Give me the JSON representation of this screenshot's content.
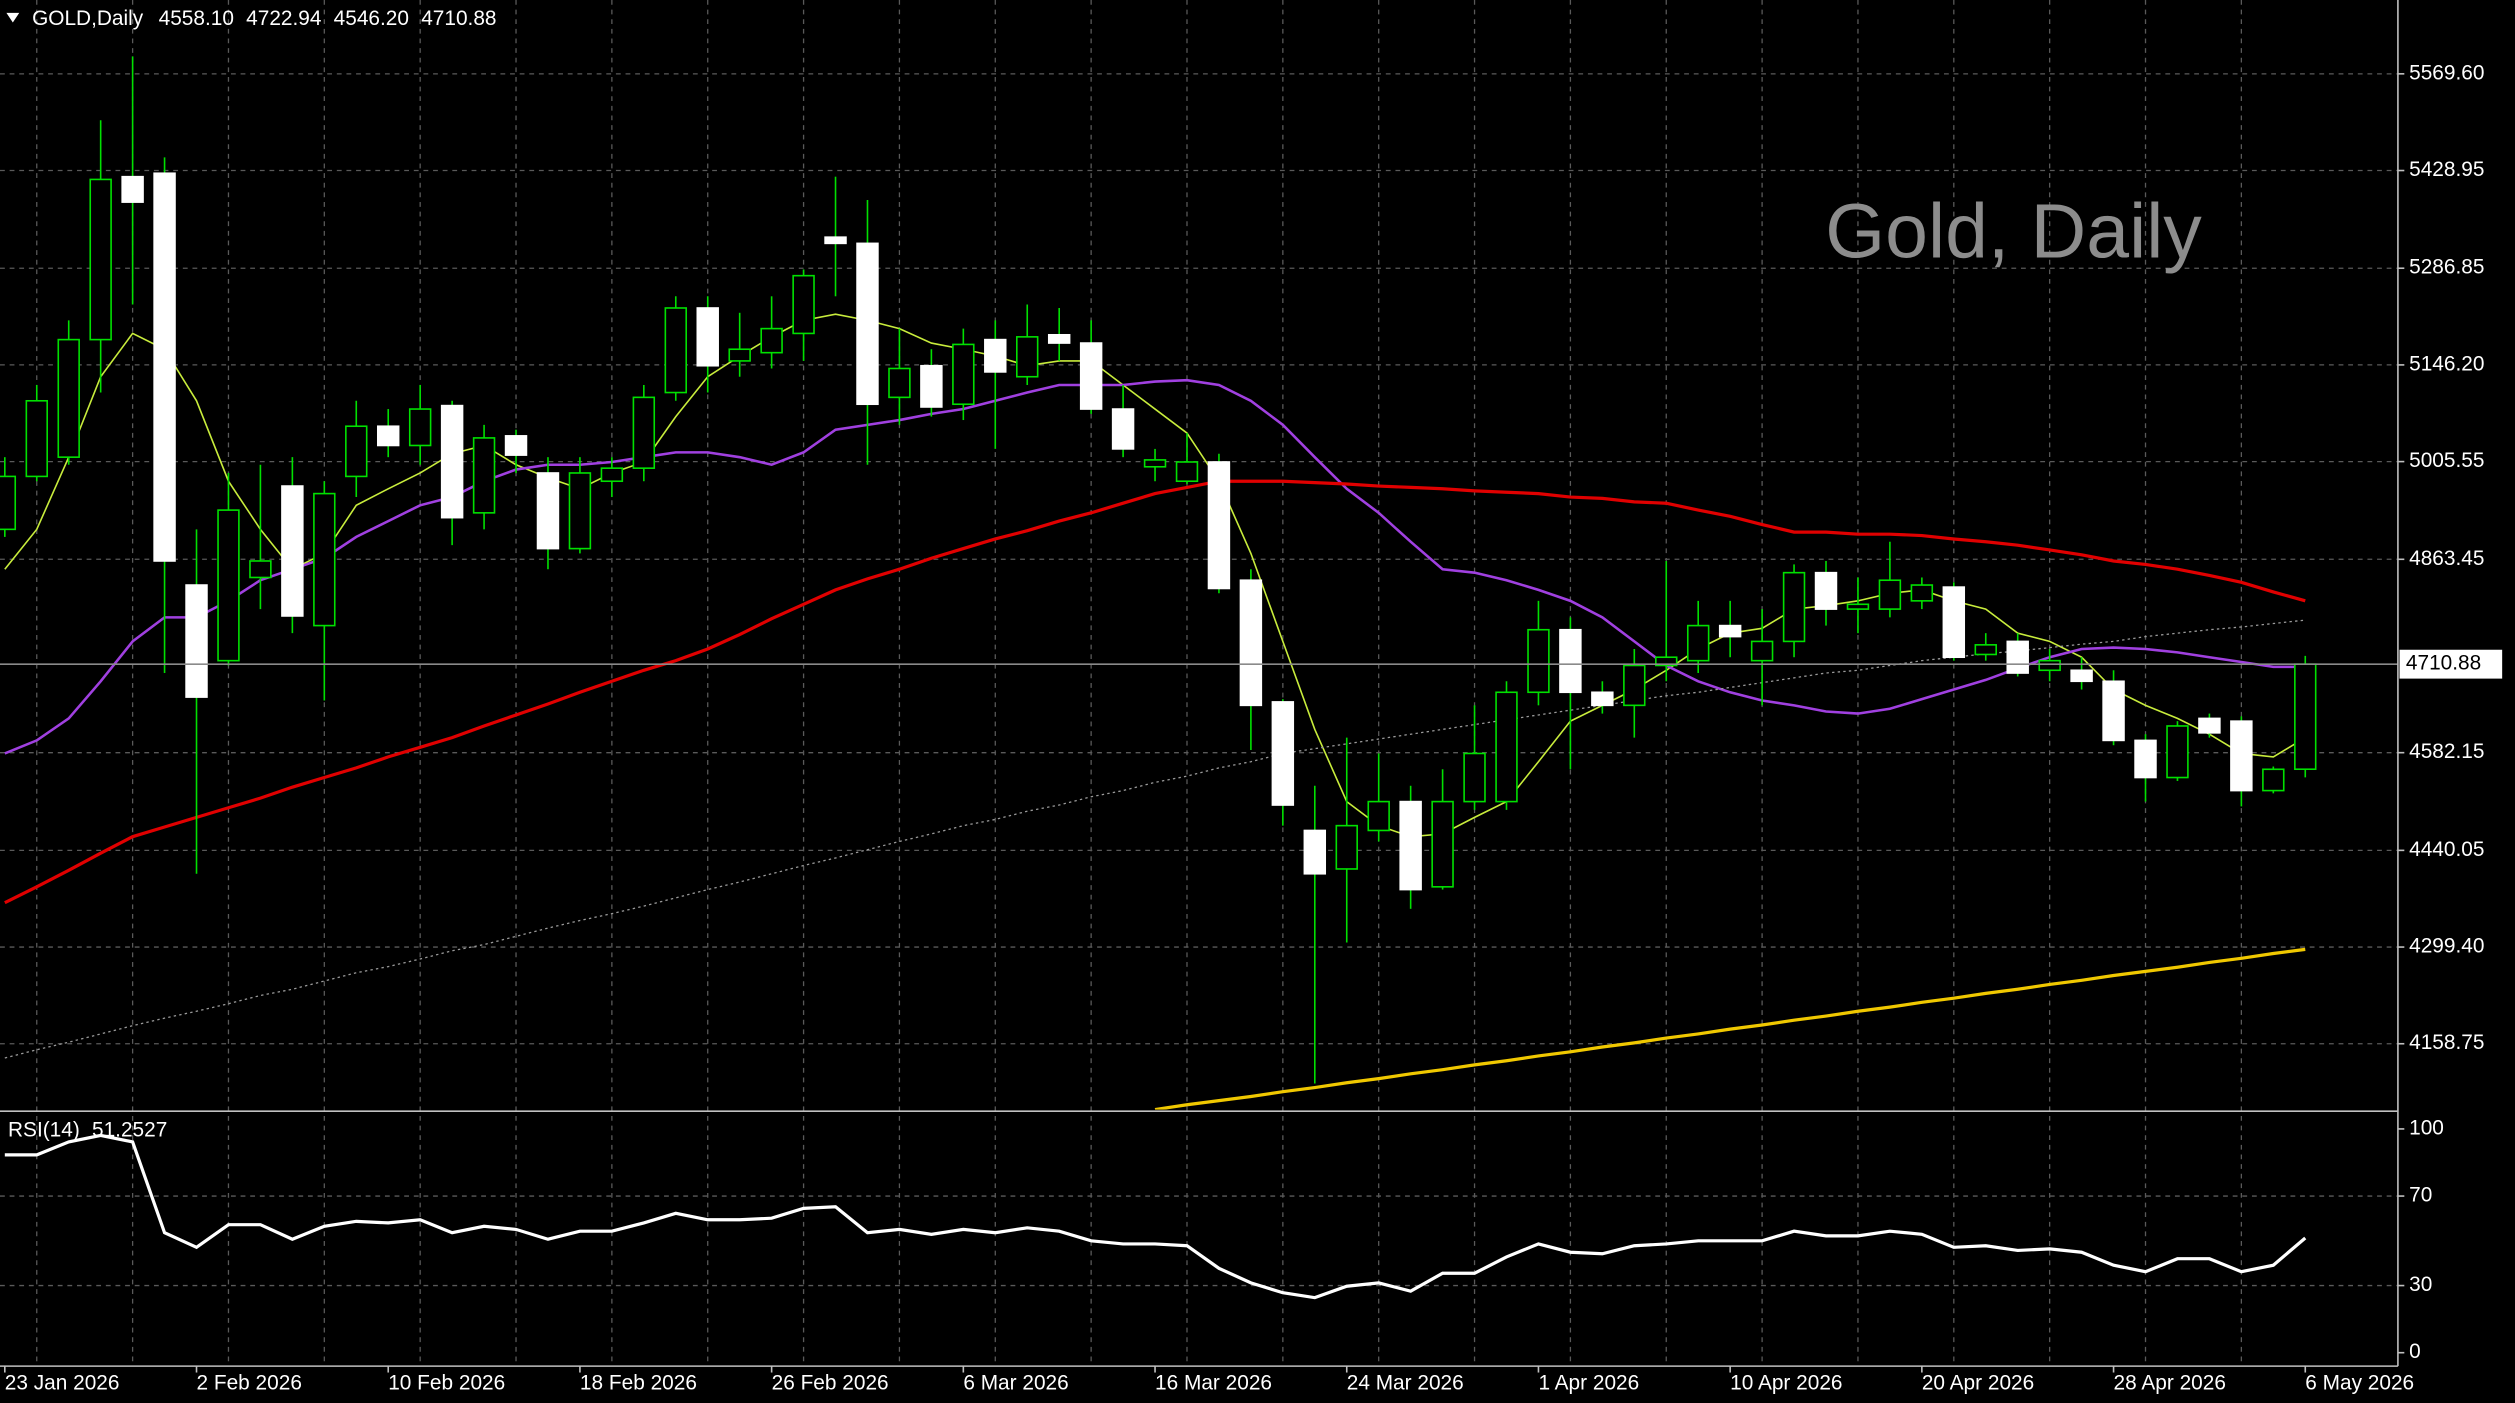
{
  "chart_data": [
    {
      "type": "candlestick",
      "title": "GOLD,Daily",
      "header_values": [
        "4558.10",
        "4722.94",
        "4546.20",
        "4710.88"
      ],
      "watermark": "Gold, Daily",
      "categories": [
        "23 Jan 2026",
        null,
        null,
        null,
        null,
        null,
        "2 Feb 2026",
        null,
        null,
        null,
        null,
        null,
        "10 Feb 2026",
        null,
        null,
        null,
        null,
        null,
        "18 Feb 2026",
        null,
        null,
        null,
        null,
        null,
        "26 Feb 2026",
        null,
        null,
        null,
        null,
        null,
        "6 Mar 2026",
        null,
        null,
        null,
        null,
        null,
        "16 Mar 2026",
        null,
        null,
        null,
        null,
        null,
        "24 Mar 2026",
        null,
        null,
        null,
        null,
        null,
        "1 Apr 2026",
        null,
        null,
        null,
        null,
        null,
        "10 Apr 2026",
        null,
        null,
        null,
        null,
        null,
        "20 Apr 2026",
        null,
        null,
        null,
        null,
        null,
        "28 Apr 2026",
        null,
        null,
        null,
        null,
        null,
        "6 May 2026"
      ],
      "open": [
        4907,
        4984,
        5012,
        5183,
        5420,
        5425,
        4826,
        4716,
        4837,
        4970,
        4767,
        4984,
        5057,
        5029,
        5087,
        4931,
        5043,
        4989,
        4879,
        4977,
        4996,
        5106,
        5229,
        5152,
        5164,
        5192,
        5332,
        5323,
        5099,
        5145,
        5089,
        5183,
        5129,
        5190,
        5178,
        5082,
        4998,
        4977,
        5005,
        4833,
        4656,
        4469,
        4413,
        4469,
        4511,
        4387,
        4511,
        4511,
        4670,
        4761,
        4670,
        4651,
        4709,
        4716,
        4767,
        4716,
        4744,
        4844,
        4791,
        4791,
        4803,
        4823,
        4725,
        4744,
        4702,
        4702,
        4686,
        4600,
        4546,
        4632,
        4628,
        4527,
        4558.1
      ],
      "high": [
        5012,
        5117,
        5211,
        5502,
        5595,
        5448,
        4907,
        4989,
        5001,
        5012,
        4977,
        5094,
        5082,
        5117,
        5094,
        5059,
        5052,
        5012,
        5012,
        5012,
        5117,
        5246,
        5246,
        5222,
        5246,
        5285,
        5420,
        5386,
        5199,
        5169,
        5199,
        5211,
        5234,
        5229,
        5211,
        5117,
        5024,
        5047,
        5017,
        4849,
        4660,
        4534,
        4604,
        4581,
        4534,
        4558,
        4651,
        4686,
        4803,
        4779,
        4686,
        4733,
        4861,
        4803,
        4803,
        4791,
        4856,
        4861,
        4837,
        4889,
        4837,
        4830,
        4756,
        4756,
        4733,
        4721,
        4702,
        4609,
        4628,
        4639,
        4635,
        4562,
        4722.94
      ],
      "low": [
        4896,
        4977,
        5001,
        5106,
        5234,
        4698,
        4406,
        4709,
        4791,
        4756,
        4658,
        4954,
        5012,
        5001,
        4884,
        4907,
        4989,
        4849,
        4872,
        4954,
        4977,
        5094,
        5106,
        5129,
        5141,
        5152,
        5246,
        5001,
        5059,
        5071,
        5066,
        5024,
        5117,
        5152,
        5075,
        5012,
        4977,
        4973,
        4814,
        4586,
        4476,
        4101,
        4306,
        4453,
        4355,
        4383,
        4499,
        4499,
        4651,
        4558,
        4639,
        4604,
        4686,
        4698,
        4721,
        4651,
        4721,
        4767,
        4756,
        4779,
        4791,
        4716,
        4716,
        4693,
        4686,
        4674,
        4593,
        4511,
        4541,
        4604,
        4504,
        4523,
        4546.2
      ],
      "close": [
        4984,
        5094,
        5183,
        5416,
        5383,
        4861,
        4663,
        4935,
        4861,
        4781,
        4959,
        5057,
        5029,
        5082,
        4924,
        5040,
        5015,
        4879,
        4989,
        4996,
        5099,
        5229,
        5145,
        5169,
        5199,
        5276,
        5323,
        5089,
        5141,
        5085,
        5176,
        5136,
        5187,
        5178,
        5082,
        5024,
        5008,
        5005,
        4821,
        4651,
        4506,
        4406,
        4476,
        4511,
        4383,
        4511,
        4581,
        4670,
        4761,
        4670,
        4651,
        4709,
        4721,
        4767,
        4751,
        4744,
        4844,
        4791,
        4798,
        4833,
        4826,
        4721,
        4739,
        4698,
        4716,
        4686,
        4600,
        4546,
        4621,
        4611,
        4527,
        4558,
        4710.88
      ],
      "up_color": "#00e000",
      "down_color": "#ffffff",
      "overlays": [
        {
          "color": "#c8ec3c",
          "width": 1,
          "style": "solid",
          "values": [
            4849,
            4907,
            5012,
            5129,
            5192,
            5169,
            5094,
            4977,
            4907,
            4849,
            4872,
            4942,
            4966,
            4989,
            5017,
            5029,
            5001,
            4982,
            4966,
            4989,
            5005,
            5071,
            5129,
            5159,
            5187,
            5211,
            5220,
            5211,
            5199,
            5178,
            5169,
            5159,
            5145,
            5152,
            5152,
            5117,
            5082,
            5047,
            4977,
            4872,
            4744,
            4616,
            4511,
            4476,
            4460,
            4464,
            4488,
            4511,
            4569,
            4628,
            4651,
            4674,
            4702,
            4733,
            4756,
            4763,
            4791,
            4796,
            4803,
            4814,
            4819,
            4803,
            4791,
            4756,
            4744,
            4721,
            4674,
            4651,
            4632,
            4609,
            4581,
            4576,
            4604
          ]
        },
        {
          "color": "#a040e0",
          "width": 1.6,
          "style": "solid",
          "values": [
            4581,
            4600,
            4632,
            4686,
            4744,
            4779,
            4779,
            4803,
            4833,
            4849,
            4865,
            4896,
            4919,
            4942,
            4954,
            4977,
            4994,
            5001,
            5001,
            5005,
            5012,
            5019,
            5019,
            5012,
            5001,
            5019,
            5052,
            5059,
            5066,
            5075,
            5082,
            5094,
            5106,
            5117,
            5117,
            5117,
            5122,
            5124,
            5117,
            5094,
            5059,
            5012,
            4966,
            4931,
            4889,
            4849,
            4844,
            4833,
            4819,
            4803,
            4779,
            4744,
            4709,
            4686,
            4670,
            4658,
            4651,
            4642,
            4639,
            4646,
            4660,
            4674,
            4688,
            4705,
            4721,
            4733,
            4735,
            4733,
            4728,
            4721,
            4714,
            4707,
            4707
          ]
        },
        {
          "color": "#e00000",
          "width": 2,
          "style": "solid",
          "values": [
            4364,
            4387,
            4411,
            4436,
            4460,
            4474,
            4488,
            4502,
            4516,
            4532,
            4546,
            4560,
            4576,
            4590,
            4604,
            4621,
            4637,
            4653,
            4670,
            4686,
            4702,
            4716,
            4733,
            4754,
            4777,
            4798,
            4819,
            4835,
            4849,
            4865,
            4879,
            4893,
            4905,
            4919,
            4931,
            4945,
            4959,
            4968,
            4977,
            4977,
            4977,
            4975,
            4973,
            4970,
            4968,
            4966,
            4963,
            4961,
            4959,
            4954,
            4952,
            4947,
            4945,
            4935,
            4926,
            4914,
            4903,
            4903,
            4900,
            4900,
            4898,
            4893,
            4889,
            4884,
            4877,
            4870,
            4861,
            4856,
            4849,
            4840,
            4830,
            4816,
            4803
          ]
        },
        {
          "color": "#9a9a9a",
          "width": 0.8,
          "style": "dotted",
          "values": [
            4138,
            4150,
            4161,
            4173,
            4185,
            4196,
            4206,
            4217,
            4229,
            4238,
            4250,
            4262,
            4271,
            4282,
            4294,
            4303,
            4315,
            4327,
            4338,
            4348,
            4359,
            4371,
            4383,
            4394,
            4406,
            4418,
            4429,
            4441,
            4453,
            4464,
            4476,
            4485,
            4497,
            4506,
            4518,
            4527,
            4539,
            4548,
            4560,
            4569,
            4581,
            4588,
            4595,
            4602,
            4609,
            4616,
            4623,
            4630,
            4637,
            4644,
            4651,
            4658,
            4665,
            4670,
            4677,
            4684,
            4691,
            4698,
            4702,
            4709,
            4716,
            4721,
            4726,
            4730,
            4735,
            4740,
            4744,
            4751,
            4756,
            4761,
            4765,
            4770,
            4775
          ]
        },
        {
          "color": "#f0c800",
          "width": 2,
          "style": "solid",
          "values": [
            null,
            null,
            null,
            null,
            null,
            null,
            null,
            null,
            null,
            null,
            null,
            null,
            null,
            null,
            null,
            null,
            null,
            null,
            null,
            null,
            null,
            null,
            null,
            null,
            null,
            null,
            null,
            null,
            null,
            null,
            null,
            null,
            null,
            null,
            null,
            null,
            4063,
            4070,
            4076,
            4082,
            4089,
            4095,
            4102,
            4108,
            4115,
            4121,
            4128,
            4134,
            4141,
            4147,
            4154,
            4160,
            4167,
            4173,
            4180,
            4186,
            4193,
            4199,
            4206,
            4212,
            4219,
            4225,
            4232,
            4238,
            4245,
            4251,
            4258,
            4264,
            4270,
            4277,
            4283,
            4290,
            4296
          ]
        }
      ],
      "current_price": 4710.88,
      "ylim": [
        4063,
        5677
      ],
      "yticks": [
        {
          "value": 5569.6,
          "label": "5569.60"
        },
        5428.95,
        5286.85,
        {
          "value": 5146.2,
          "label": "5146.20"
        },
        5005.55,
        4863.45,
        4582.15,
        4440.05,
        {
          "value": 4299.4,
          "label": "4299.40"
        },
        4158.75
      ],
      "grid": true
    },
    {
      "type": "line",
      "series": [
        {
          "name": "RSI(14)",
          "color": "#ffffff",
          "values": [
            88.4,
            88.4,
            94.2,
            97.1,
            94.2,
            53.6,
            47.1,
            57.2,
            57.2,
            50.7,
            56.5,
            58.7,
            58.0,
            59.4,
            53.6,
            56.5,
            55.1,
            50.7,
            54.3,
            54.3,
            58.0,
            62.3,
            59.4,
            59.4,
            60.1,
            64.5,
            65.2,
            53.6,
            55.1,
            52.9,
            55.1,
            53.6,
            55.8,
            54.3,
            50.0,
            48.6,
            48.6,
            47.8,
            37.7,
            31.2,
            26.8,
            24.6,
            29.7,
            31.2,
            27.5,
            35.5,
            35.5,
            42.8,
            48.6,
            44.9,
            44.2,
            47.8,
            48.6,
            50.0,
            50.0,
            50.0,
            54.3,
            52.2,
            52.2,
            54.3,
            52.9,
            47.1,
            47.8,
            45.7,
            46.4,
            44.9,
            39.1,
            36.2,
            42.0,
            42.0,
            36.2,
            39.1,
            51.2527
          ]
        }
      ],
      "ylim": [
        -6,
        106.5
      ],
      "yticks": [
        0,
        30,
        70,
        100
      ],
      "grid": true
    }
  ]
}
